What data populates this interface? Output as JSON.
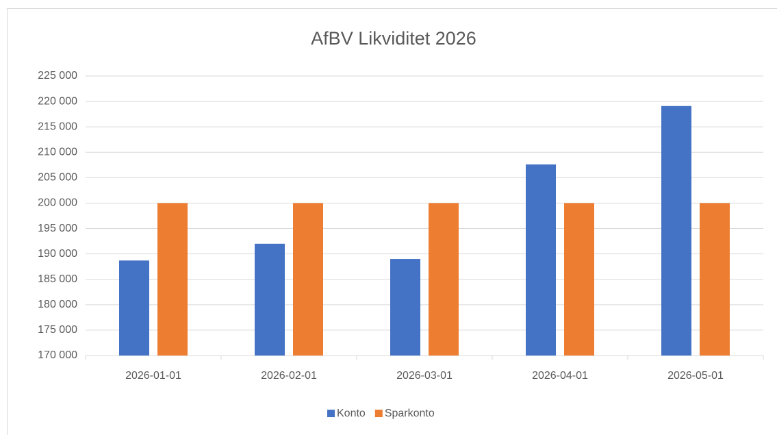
{
  "chart_data": {
    "type": "bar",
    "title": "AfBV Likviditet 2026",
    "categories": [
      "2026-01-01",
      "2026-02-01",
      "2026-03-01",
      "2026-04-01",
      "2026-05-01"
    ],
    "series": [
      {
        "name": "Konto",
        "color": "#4472c4",
        "values": [
          188700,
          192000,
          189000,
          207600,
          219100
        ]
      },
      {
        "name": "Sparkonto",
        "color": "#ed7d31",
        "values": [
          200000,
          200000,
          200000,
          200000,
          200000
        ]
      }
    ],
    "ylim": [
      170000,
      225000
    ],
    "yticks": [
      {
        "value": 170000,
        "label": "170 000"
      },
      {
        "value": 175000,
        "label": "175 000"
      },
      {
        "value": 180000,
        "label": "180 000"
      },
      {
        "value": 185000,
        "label": "185 000"
      },
      {
        "value": 190000,
        "label": "190 000"
      },
      {
        "value": 195000,
        "label": "195 000"
      },
      {
        "value": 200000,
        "label": "200 000"
      },
      {
        "value": 205000,
        "label": "205 000"
      },
      {
        "value": 210000,
        "label": "210 000"
      },
      {
        "value": 215000,
        "label": "215 000"
      },
      {
        "value": 220000,
        "label": "220 000"
      },
      {
        "value": 225000,
        "label": "225 000"
      }
    ],
    "grid": true,
    "legend": "bottom"
  }
}
